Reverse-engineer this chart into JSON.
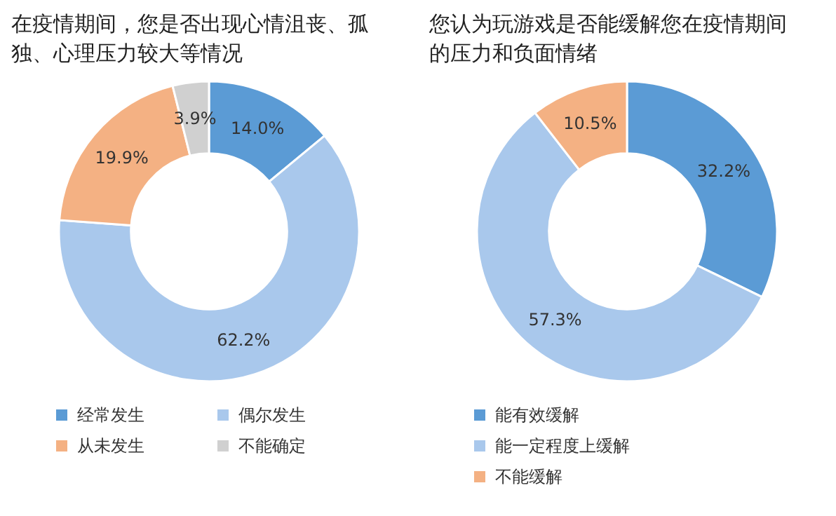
{
  "chart_data": [
    {
      "type": "donut",
      "title": "在疫情期间，您是否出现心情沮丧、孤独、心理压力较大等情况",
      "categories": [
        "经常发生",
        "偶尔发生",
        "从未发生",
        "不能确定"
      ],
      "values": [
        14.0,
        62.2,
        19.9,
        3.9
      ],
      "colors": [
        "#5b9bd5",
        "#a9c8ec",
        "#f4b183",
        "#d0d0d0"
      ],
      "value_labels": [
        "14.0%",
        "62.2%",
        "19.9%",
        "3.9%"
      ],
      "legend": "bottom"
    },
    {
      "type": "donut",
      "title": "您认为玩游戏是否能缓解您在疫情期间的压力和负面情绪",
      "categories": [
        "能有效缓解",
        "能一定程度上缓解",
        "不能缓解"
      ],
      "values": [
        32.2,
        57.3,
        10.5
      ],
      "colors": [
        "#5b9bd5",
        "#a9c8ec",
        "#f4b183"
      ],
      "value_labels": [
        "32.2%",
        "57.3%",
        "10.5%"
      ],
      "legend": "bottom"
    }
  ]
}
